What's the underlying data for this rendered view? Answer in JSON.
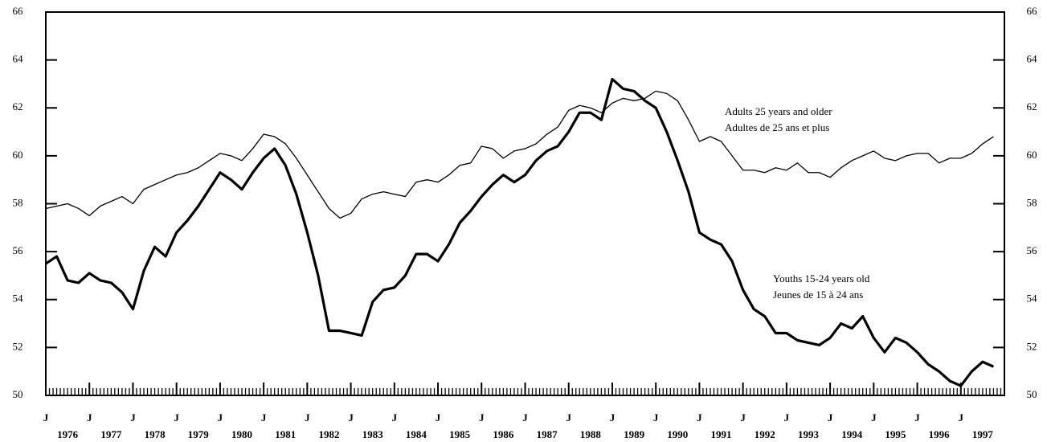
{
  "chart_data": {
    "type": "line",
    "x": [
      1976,
      1976.25,
      1976.5,
      1976.75,
      1977,
      1977.25,
      1977.5,
      1977.75,
      1978,
      1978.25,
      1978.5,
      1978.75,
      1979,
      1979.25,
      1979.5,
      1979.75,
      1980,
      1980.25,
      1980.5,
      1980.75,
      1981,
      1981.25,
      1981.5,
      1981.75,
      1982,
      1982.25,
      1982.5,
      1982.75,
      1983,
      1983.25,
      1983.5,
      1983.75,
      1984,
      1984.25,
      1984.5,
      1984.75,
      1985,
      1985.25,
      1985.5,
      1985.75,
      1986,
      1986.25,
      1986.5,
      1986.75,
      1987,
      1987.25,
      1987.5,
      1987.75,
      1988,
      1988.25,
      1988.5,
      1988.75,
      1989,
      1989.25,
      1989.5,
      1989.75,
      1990,
      1990.25,
      1990.5,
      1990.75,
      1991,
      1991.25,
      1991.5,
      1991.75,
      1992,
      1992.25,
      1992.5,
      1992.75,
      1993,
      1993.25,
      1993.5,
      1993.75,
      1994,
      1994.25,
      1994.5,
      1994.75,
      1995,
      1995.25,
      1995.5,
      1995.75,
      1996,
      1996.25,
      1996.5,
      1996.75,
      1997,
      1997.25,
      1997.5,
      1997.75
    ],
    "series": [
      {
        "name": "Adults 25 years and older",
        "name_fr": "Adultes de 25 ans et plus",
        "color": "#000000",
        "width": 1.3,
        "values": [
          57.8,
          57.9,
          58.0,
          57.8,
          57.5,
          57.9,
          58.1,
          58.3,
          58.0,
          58.6,
          58.8,
          59.0,
          59.2,
          59.3,
          59.5,
          59.8,
          60.1,
          60.0,
          59.8,
          60.3,
          60.9,
          60.8,
          60.5,
          59.9,
          59.2,
          58.5,
          57.8,
          57.4,
          57.6,
          58.2,
          58.4,
          58.5,
          58.4,
          58.3,
          58.9,
          59.0,
          58.9,
          59.2,
          59.6,
          59.7,
          60.4,
          60.3,
          59.9,
          60.2,
          60.3,
          60.5,
          60.9,
          61.2,
          61.9,
          62.1,
          62.0,
          61.8,
          62.2,
          62.4,
          62.3,
          62.4,
          62.7,
          62.6,
          62.3,
          61.5,
          60.6,
          60.8,
          60.6,
          60.0,
          59.4,
          59.4,
          59.3,
          59.5,
          59.4,
          59.7,
          59.3,
          59.3,
          59.1,
          59.5,
          59.8,
          60.0,
          60.2,
          59.9,
          59.8,
          60.0,
          60.1,
          60.1,
          59.7,
          59.9,
          59.9,
          60.1,
          60.5,
          60.8
        ]
      },
      {
        "name": "Youths 15-24 years old",
        "name_fr": "Jeunes de 15 à 24 ans",
        "color": "#000000",
        "width": 3.2,
        "values": [
          55.5,
          55.8,
          54.8,
          54.7,
          55.1,
          54.8,
          54.7,
          54.3,
          53.6,
          55.2,
          56.2,
          55.8,
          56.8,
          57.3,
          57.9,
          58.6,
          59.3,
          59.0,
          58.6,
          59.3,
          59.9,
          60.3,
          59.6,
          58.4,
          56.8,
          55.0,
          52.7,
          52.7,
          52.6,
          52.5,
          53.9,
          54.4,
          54.5,
          55.0,
          55.9,
          55.9,
          55.6,
          56.3,
          57.2,
          57.7,
          58.3,
          58.8,
          59.2,
          58.9,
          59.2,
          59.8,
          60.2,
          60.4,
          61.0,
          61.8,
          61.8,
          61.5,
          63.2,
          62.8,
          62.7,
          62.3,
          62.0,
          61.0,
          59.8,
          58.5,
          56.8,
          56.5,
          56.3,
          55.6,
          54.4,
          53.6,
          53.3,
          52.6,
          52.6,
          52.3,
          52.2,
          52.1,
          52.4,
          53.0,
          52.8,
          53.3,
          52.4,
          51.8,
          52.4,
          52.2,
          51.8,
          51.3,
          51.0,
          50.6,
          50.4,
          51.0,
          51.4,
          51.2
        ]
      }
    ],
    "xlim": [
      1976,
      1998
    ],
    "xticks": [
      {
        "value": 1976,
        "label": "J"
      },
      {
        "value": 1977,
        "label": "J"
      },
      {
        "value": 1978,
        "label": "J"
      },
      {
        "value": 1979,
        "label": "J"
      },
      {
        "value": 1980,
        "label": "J"
      },
      {
        "value": 1981,
        "label": "J"
      },
      {
        "value": 1982,
        "label": "J"
      },
      {
        "value": 1983,
        "label": "J"
      },
      {
        "value": 1984,
        "label": "J"
      },
      {
        "value": 1985,
        "label": "J"
      },
      {
        "value": 1986,
        "label": "J"
      },
      {
        "value": 1987,
        "label": "J"
      },
      {
        "value": 1988,
        "label": "J"
      },
      {
        "value": 1989,
        "label": "J"
      },
      {
        "value": 1990,
        "label": "J"
      },
      {
        "value": 1991,
        "label": "J"
      },
      {
        "value": 1992,
        "label": "J"
      },
      {
        "value": 1993,
        "label": "J"
      },
      {
        "value": 1994,
        "label": "J"
      },
      {
        "value": 1995,
        "label": "J"
      },
      {
        "value": 1996,
        "label": "J"
      },
      {
        "value": 1997,
        "label": "J"
      }
    ],
    "year_labels": [
      1976,
      1977,
      1978,
      1979,
      1980,
      1981,
      1982,
      1983,
      1984,
      1985,
      1986,
      1987,
      1988,
      1989,
      1990,
      1991,
      1992,
      1993,
      1994,
      1995,
      1996,
      1997
    ],
    "ylim": [
      50,
      66
    ],
    "yticks": [
      50,
      52,
      54,
      56,
      58,
      60,
      62,
      64,
      66
    ],
    "grid": false
  }
}
